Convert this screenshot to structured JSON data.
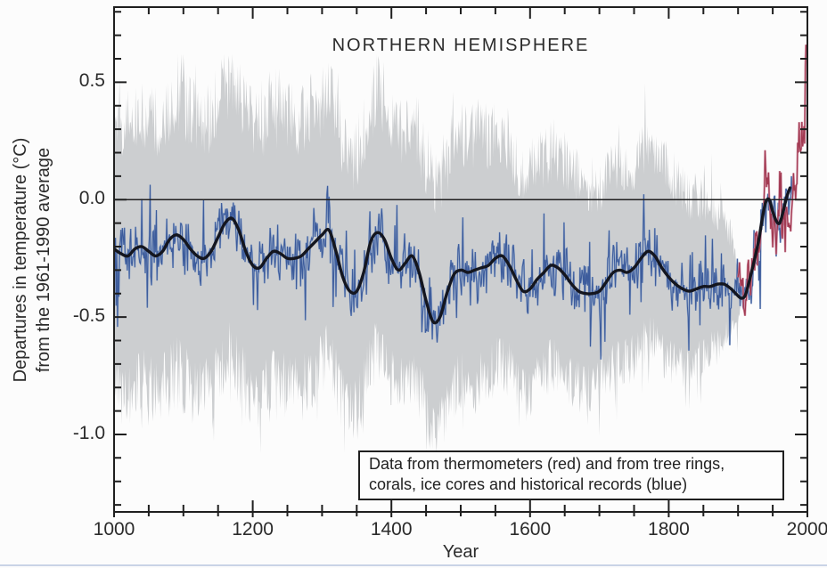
{
  "page": {
    "background": "#fcfcfc",
    "bottom_strip_color": "#c9d3e6"
  },
  "chart_data": {
    "type": "line",
    "title": "NORTHERN HEMISPHERE",
    "xlabel": "Year",
    "ylabel": [
      "Departures in temperature (°C)",
      "from the 1961-1990 average"
    ],
    "xlim": [
      1000,
      2000
    ],
    "ylim": [
      -1.33,
      0.82
    ],
    "xticks": [
      1000,
      1200,
      1400,
      1600,
      1800,
      2000
    ],
    "xminor_step": 50,
    "yticks": [
      0.5,
      0.0,
      -0.5,
      -1.0
    ],
    "ytick_labels": [
      "0.5",
      "0.0",
      "-0.5",
      "-1.0"
    ],
    "yminor_step": 0.1,
    "zero_line": 0.0,
    "grid": false,
    "legend_position": "none",
    "annotation_box": [
      "Data from thermometers (red) and from tree rings,",
      "corals, ice cores and historical records (blue)"
    ],
    "colors": {
      "band": "#c9cbcd",
      "annual_blue": "#3d5c9c",
      "annual_blue_light": "#8ba3c9",
      "smoothed_black": "#14161f",
      "instrumental_red": "#a23a52",
      "instrumental_red_light": "#cf8ba0",
      "axis": "#1f1f1f",
      "zero_line": "#1f1f1f",
      "text": "#2b2b2b"
    },
    "series": [
      {
        "name": "uncertainty-band",
        "type": "band",
        "x_start": 1000,
        "x_end": 1904,
        "half_width": {
          "x": [
            1000,
            1100,
            1200,
            1300,
            1400,
            1500,
            1600,
            1700,
            1800,
            1850,
            1880,
            1900,
            1904
          ],
          "up": [
            0.56,
            0.58,
            0.6,
            0.58,
            0.6,
            0.58,
            0.5,
            0.46,
            0.45,
            0.38,
            0.28,
            0.14,
            0.05
          ],
          "down": [
            0.58,
            0.6,
            0.58,
            0.55,
            0.5,
            0.48,
            0.44,
            0.4,
            0.36,
            0.3,
            0.22,
            0.1,
            0.04
          ]
        }
      },
      {
        "name": "annual-reconstruction-blue",
        "type": "line",
        "x_start": 1000,
        "x_end": 1980,
        "basis": "smoothed-reconstruction plus stochastic annual anomalies"
      },
      {
        "name": "smoothed-reconstruction-black",
        "type": "line",
        "x": [
          1000,
          1010,
          1020,
          1030,
          1040,
          1050,
          1060,
          1070,
          1080,
          1090,
          1100,
          1110,
          1120,
          1130,
          1140,
          1150,
          1160,
          1170,
          1180,
          1190,
          1200,
          1210,
          1220,
          1230,
          1240,
          1250,
          1260,
          1270,
          1280,
          1290,
          1300,
          1310,
          1320,
          1330,
          1340,
          1350,
          1360,
          1370,
          1380,
          1390,
          1400,
          1410,
          1420,
          1430,
          1440,
          1450,
          1460,
          1470,
          1480,
          1490,
          1500,
          1510,
          1520,
          1530,
          1540,
          1550,
          1560,
          1570,
          1580,
          1590,
          1600,
          1610,
          1620,
          1630,
          1640,
          1650,
          1660,
          1670,
          1680,
          1690,
          1700,
          1710,
          1720,
          1730,
          1740,
          1750,
          1760,
          1770,
          1780,
          1790,
          1800,
          1810,
          1820,
          1830,
          1840,
          1850,
          1860,
          1870,
          1880,
          1890,
          1900,
          1905,
          1910,
          1915,
          1920,
          1925,
          1930,
          1935,
          1940,
          1945,
          1950,
          1955,
          1960,
          1965,
          1970,
          1975
        ],
        "y": [
          -0.21,
          -0.23,
          -0.24,
          -0.21,
          -0.2,
          -0.22,
          -0.24,
          -0.22,
          -0.17,
          -0.15,
          -0.17,
          -0.21,
          -0.24,
          -0.25,
          -0.22,
          -0.16,
          -0.1,
          -0.08,
          -0.13,
          -0.22,
          -0.28,
          -0.29,
          -0.25,
          -0.22,
          -0.23,
          -0.25,
          -0.25,
          -0.24,
          -0.21,
          -0.18,
          -0.15,
          -0.13,
          -0.22,
          -0.33,
          -0.39,
          -0.39,
          -0.31,
          -0.18,
          -0.14,
          -0.17,
          -0.25,
          -0.3,
          -0.27,
          -0.24,
          -0.31,
          -0.43,
          -0.52,
          -0.5,
          -0.4,
          -0.32,
          -0.3,
          -0.31,
          -0.3,
          -0.29,
          -0.28,
          -0.25,
          -0.24,
          -0.28,
          -0.34,
          -0.39,
          -0.38,
          -0.34,
          -0.31,
          -0.28,
          -0.29,
          -0.32,
          -0.36,
          -0.39,
          -0.4,
          -0.4,
          -0.39,
          -0.35,
          -0.31,
          -0.3,
          -0.31,
          -0.29,
          -0.25,
          -0.22,
          -0.24,
          -0.29,
          -0.33,
          -0.36,
          -0.38,
          -0.39,
          -0.38,
          -0.37,
          -0.37,
          -0.36,
          -0.36,
          -0.38,
          -0.41,
          -0.42,
          -0.41,
          -0.36,
          -0.3,
          -0.24,
          -0.17,
          -0.08,
          -0.01,
          0.0,
          -0.05,
          -0.09,
          -0.1,
          -0.05,
          0.01,
          0.05
        ]
      },
      {
        "name": "instrumental-red",
        "type": "line",
        "x": [
          1900,
          1902,
          1904,
          1906,
          1908,
          1910,
          1912,
          1914,
          1916,
          1918,
          1920,
          1922,
          1924,
          1926,
          1928,
          1930,
          1932,
          1934,
          1936,
          1938,
          1940,
          1942,
          1944,
          1946,
          1948,
          1950,
          1952,
          1954,
          1956,
          1958,
          1960,
          1962,
          1964,
          1966,
          1968,
          1970,
          1972,
          1974,
          1976,
          1978,
          1980,
          1982,
          1984,
          1986,
          1988,
          1990,
          1992,
          1994,
          1996,
          1998
        ],
        "y": [
          -0.32,
          -0.38,
          -0.36,
          -0.3,
          -0.42,
          -0.44,
          -0.4,
          -0.28,
          -0.34,
          -0.38,
          -0.26,
          -0.3,
          -0.24,
          -0.14,
          -0.22,
          -0.14,
          -0.18,
          -0.1,
          -0.08,
          0.02,
          0.04,
          0.06,
          0.12,
          -0.02,
          -0.08,
          -0.16,
          -0.04,
          -0.12,
          -0.16,
          -0.02,
          -0.04,
          -0.02,
          -0.16,
          -0.1,
          -0.08,
          -0.02,
          -0.04,
          -0.12,
          -0.14,
          0.0,
          0.08,
          0.04,
          0.06,
          0.12,
          0.22,
          0.28,
          0.18,
          0.26,
          0.3,
          0.66
        ]
      }
    ],
    "noise": {
      "seed": 1337,
      "annual_sigma": 0.052,
      "ar": 0.35,
      "spike_prob": 0.1,
      "spike_min": 0.06,
      "spike_max": 0.22,
      "band_tooth_prob": 0.1,
      "band_tooth_max": 0.16
    }
  }
}
